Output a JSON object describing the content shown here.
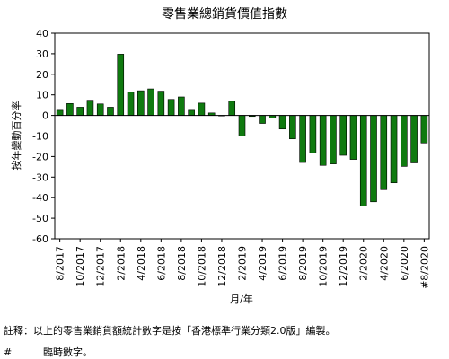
{
  "chart_data": {
    "type": "bar",
    "title": "零售業總銷貨價值指數",
    "ylabel": "按年變動百分率",
    "xlabel": "月/年",
    "ylim": [
      -60,
      40
    ],
    "yticks": [
      40,
      30,
      20,
      10,
      0,
      -10,
      -20,
      -30,
      -40,
      -50,
      -60
    ],
    "categories": [
      "8/2017",
      "9/2017",
      "10/2017",
      "11/2017",
      "12/2017",
      "1/2018",
      "2/2018",
      "3/2018",
      "4/2018",
      "5/2018",
      "6/2018",
      "7/2018",
      "8/2018",
      "9/2018",
      "10/2018",
      "11/2018",
      "12/2018",
      "1/2019",
      "2/2019",
      "3/2019",
      "4/2019",
      "5/2019",
      "6/2019",
      "7/2019",
      "8/2019",
      "9/2019",
      "10/2019",
      "11/2019",
      "12/2019",
      "1/2020",
      "2/2020",
      "3/2020",
      "4/2020",
      "5/2020",
      "6/2020",
      "7/2020",
      "#8/2020"
    ],
    "x_tick_labels": [
      "8/2017",
      "10/2017",
      "12/2017",
      "2/2018",
      "4/2018",
      "6/2018",
      "8/2018",
      "10/2018",
      "12/2018",
      "2/2019",
      "4/2019",
      "6/2019",
      "8/2019",
      "10/2019",
      "12/2019",
      "2/2020",
      "4/2020",
      "6/2020",
      "#8/2020"
    ],
    "values": [
      2.5,
      5.8,
      4.0,
      7.4,
      5.6,
      4.0,
      29.8,
      11.3,
      12.0,
      12.9,
      11.8,
      7.8,
      9.0,
      2.5,
      6.0,
      1.2,
      0.0,
      6.9,
      -10.0,
      -0.5,
      -3.9,
      -1.2,
      -6.6,
      -11.4,
      -22.9,
      -18.2,
      -24.3,
      -23.6,
      -19.4,
      -21.4,
      -44.0,
      -42.0,
      -36.1,
      -32.8,
      -24.8,
      -23.1,
      -13.4
    ],
    "bar_color": "#0f7a0f",
    "grid": false
  },
  "footnotes": {
    "note": "註釋：以上的零售業銷貨額統計數字是按「香港標準行業分類2.0版」編製。",
    "hash_mark": "#",
    "hash_text": "臨時數字。"
  }
}
